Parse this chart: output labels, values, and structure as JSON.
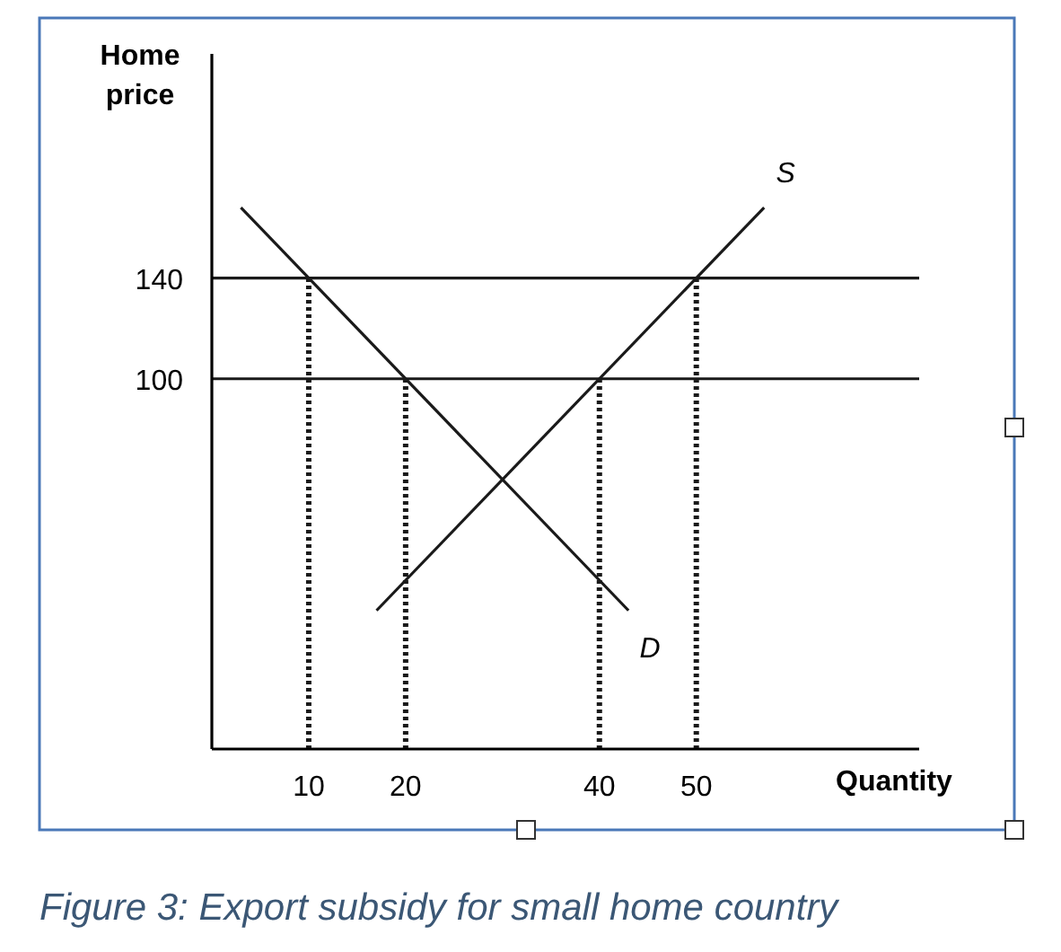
{
  "chart_data": {
    "type": "line",
    "title": "Figure 3: Export subsidy for small home country",
    "xlabel": "Quantity",
    "ylabel": "Home price",
    "xlim": [
      0,
      73
    ],
    "ylim": [
      -47,
      229
    ],
    "xticks": [
      10,
      20,
      40,
      50
    ],
    "yticks": [
      100,
      140
    ],
    "series": [
      {
        "name": "S",
        "color": "#1a1a1a",
        "x": [
          17,
          57
        ],
        "values": [
          8,
          168
        ]
      },
      {
        "name": "D",
        "color": "#1a1a1a",
        "x": [
          3,
          43
        ],
        "values": [
          168,
          8
        ]
      },
      {
        "color": "#1a1a1a",
        "x": [
          10,
          10
        ],
        "values": [
          -47,
          140
        ],
        "line_style": "dotted"
      },
      {
        "color": "#1a1a1a",
        "x": [
          20,
          20
        ],
        "values": [
          -47,
          100
        ],
        "line_style": "dotted"
      },
      {
        "color": "#1a1a1a",
        "x": [
          40,
          40
        ],
        "values": [
          -47,
          100
        ],
        "line_style": "dotted"
      },
      {
        "color": "#1a1a1a",
        "x": [
          50,
          50
        ],
        "values": [
          -47,
          140
        ],
        "line_style": "dotted"
      }
    ],
    "ref_lines": [
      {
        "axis": "y",
        "value": 140,
        "color": "#1a1a1a"
      },
      {
        "axis": "y",
        "value": 100,
        "color": "#1a1a1a"
      }
    ]
  }
}
